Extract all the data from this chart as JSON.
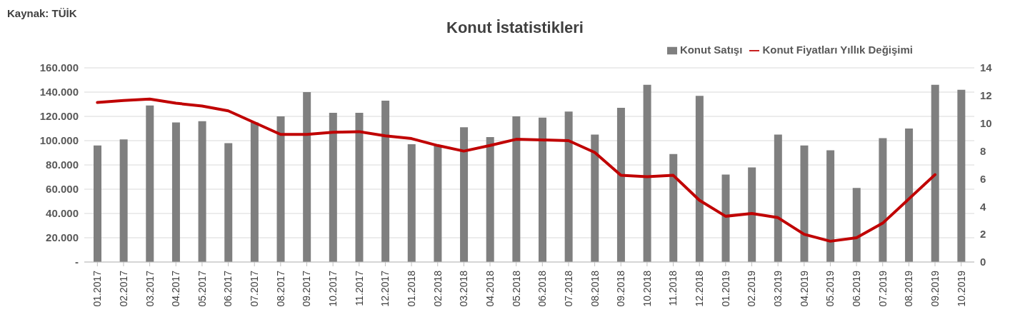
{
  "chart_data": {
    "type": "bar",
    "title": "Konut İstatistikleri",
    "annotations": [
      "Kaynak: TÜİK"
    ],
    "categories": [
      "01.2017",
      "02.2017",
      "03.2017",
      "04.2017",
      "05.2017",
      "06.2017",
      "07.2017",
      "08.2017",
      "09.2017",
      "10.2017",
      "11.2017",
      "12.2017",
      "01.2018",
      "02.2018",
      "03.2018",
      "04.2018",
      "05.2018",
      "06.2018",
      "07.2018",
      "08.2018",
      "09.2018",
      "10.2018",
      "11.2018",
      "12.2018",
      "01.2019",
      "02.2019",
      "03.2019",
      "04.2019",
      "05.2019",
      "06.2019",
      "07.2019",
      "08.2019",
      "09.2019",
      "10.2019"
    ],
    "series": [
      {
        "name": "Konut Satışı",
        "color": "#7f7f7f",
        "values": [
          96000,
          101000,
          129000,
          115000,
          116000,
          98000,
          115000,
          120000,
          140000,
          123000,
          123000,
          133000,
          97000,
          96000,
          111000,
          103000,
          120000,
          119000,
          124000,
          105000,
          127000,
          146000,
          89000,
          137000,
          72000,
          78000,
          105000,
          96000,
          92000,
          61000,
          102000,
          110000,
          146000,
          142000
        ]
      },
      {
        "name": "Konut Fiyatları Yıllık Değişimi",
        "type": "line",
        "axis": "y2",
        "color": "#c00000",
        "values": [
          11.5,
          11.65,
          11.75,
          11.45,
          11.25,
          10.9,
          10.05,
          9.2,
          9.2,
          9.35,
          9.4,
          9.1,
          8.9,
          8.4,
          8.0,
          8.4,
          8.85,
          8.8,
          8.75,
          7.9,
          6.25,
          6.15,
          6.25,
          4.45,
          3.3,
          3.5,
          3.2,
          2.0,
          1.5,
          1.75,
          2.8,
          4.55,
          6.3,
          null
        ]
      }
    ],
    "ylim": [
      0,
      160000
    ],
    "yticks": [
      {
        "value": 0,
        "label": "-"
      },
      {
        "value": 20000,
        "label": "20.000"
      },
      {
        "value": 40000,
        "label": "40.000"
      },
      {
        "value": 60000,
        "label": "60.000"
      },
      {
        "value": 80000,
        "label": "80.000"
      },
      {
        "value": 100000,
        "label": "100.000"
      },
      {
        "value": 120000,
        "label": "120.000"
      },
      {
        "value": 140000,
        "label": "140.000"
      },
      {
        "value": 160000,
        "label": "160.000"
      }
    ],
    "y2lim": [
      0,
      14
    ],
    "y2ticks": [
      0,
      2,
      4,
      6,
      8,
      10,
      12,
      14
    ],
    "grid": "y",
    "legend": "top right",
    "marker": "none"
  }
}
